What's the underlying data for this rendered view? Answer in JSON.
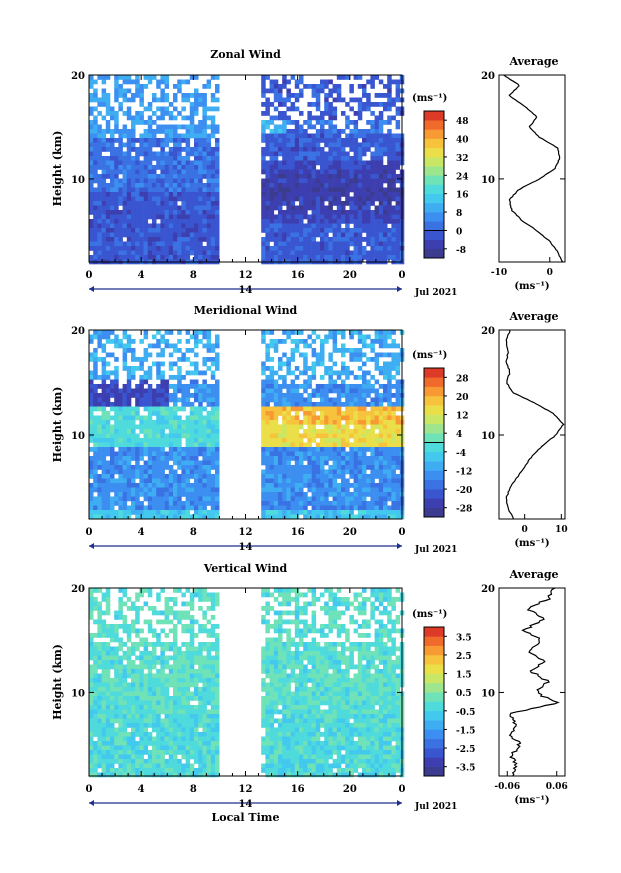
{
  "figure": {
    "month_label": "Jul 2021",
    "xlabel": "Local Time",
    "ylabel": "Height (km)",
    "date_label": "14",
    "average_title": "Average",
    "unit_label": "(ms⁻¹)"
  },
  "chart_data": [
    {
      "type": "heatmap",
      "title": "Zonal Wind",
      "xlabel": "",
      "ylabel": "Height (km)",
      "x_ticks": [
        "0",
        "4",
        "8",
        "12",
        "16",
        "20",
        "0"
      ],
      "y_ticks": [
        "10",
        "20"
      ],
      "xlim": [
        0,
        24
      ],
      "ylim": [
        2,
        20
      ],
      "data_gap_hours": [
        9.7,
        13.2
      ],
      "colorbar_ticks": [
        "48",
        "40",
        "32",
        "24",
        "16",
        "8",
        "0",
        "-8"
      ],
      "colorbar_range": [
        -12,
        52
      ],
      "profile": {
        "title": "Average",
        "xlabel": "(ms⁻¹)",
        "x_ticks": [
          "-10",
          "0"
        ],
        "xlim": [
          -10,
          3
        ],
        "y_ticks": [
          "10",
          "20"
        ],
        "heights": [
          2,
          3,
          4,
          5,
          6,
          7,
          8,
          9,
          10,
          11,
          12,
          13,
          14,
          15,
          16,
          17,
          18,
          19,
          20
        ],
        "values": [
          2.5,
          1.5,
          0.0,
          -2.5,
          -5.5,
          -7.5,
          -8.0,
          -6.0,
          -2.0,
          1.0,
          2.0,
          1.5,
          -2.0,
          -4.0,
          -2.5,
          -5.0,
          -8.0,
          -6.0,
          -9.0
        ]
      }
    },
    {
      "type": "heatmap",
      "title": "Meridional Wind",
      "xlabel": "",
      "ylabel": "Height (km)",
      "x_ticks": [
        "0",
        "4",
        "8",
        "12",
        "16",
        "20",
        "0"
      ],
      "y_ticks": [
        "10",
        "20"
      ],
      "xlim": [
        0,
        24
      ],
      "ylim": [
        2,
        20
      ],
      "data_gap_hours": [
        9.7,
        13.2
      ],
      "colorbar_ticks": [
        "28",
        "20",
        "12",
        "4",
        "-4",
        "-12",
        "-20",
        "-28"
      ],
      "colorbar_range": [
        -32,
        32
      ],
      "profile": {
        "title": "Average",
        "xlabel": "(ms⁻¹)",
        "x_ticks": [
          "0",
          "10"
        ],
        "xlim": [
          -7,
          11
        ],
        "y_ticks": [
          "10",
          "20"
        ],
        "heights": [
          2,
          3,
          4,
          5,
          6,
          7,
          8,
          9,
          10,
          11,
          12,
          13,
          14,
          15,
          16,
          17,
          18,
          19,
          20
        ],
        "values": [
          -3.0,
          -4.5,
          -5.0,
          -4.0,
          -2.0,
          0.0,
          2.0,
          5.0,
          8.5,
          10.5,
          8.0,
          3.0,
          -3.0,
          -5.0,
          -4.0,
          -5.0,
          -4.5,
          -5.0,
          -4.0
        ]
      }
    },
    {
      "type": "heatmap",
      "title": "Vertical Wind",
      "xlabel": "Local Time",
      "ylabel": "Height (km)",
      "x_ticks": [
        "0",
        "4",
        "8",
        "12",
        "16",
        "20",
        "0"
      ],
      "y_ticks": [
        "10",
        "20"
      ],
      "xlim": [
        0,
        24
      ],
      "ylim": [
        2,
        20
      ],
      "data_gap_hours": [
        9.7,
        13.2
      ],
      "colorbar_ticks": [
        "3.5",
        "2.5",
        "1.5",
        "0.5",
        "-0.5",
        "-1.5",
        "-2.5",
        "-3.5"
      ],
      "colorbar_range": [
        -4,
        4
      ],
      "profile": {
        "title": "Average",
        "xlabel": "(ms⁻¹)",
        "x_ticks": [
          "-0.06",
          "0.06"
        ],
        "xlim": [
          -0.08,
          0.08
        ],
        "y_ticks": [
          "10",
          "20"
        ],
        "heights": [
          2,
          3,
          4,
          5,
          6,
          7,
          8,
          9,
          10,
          11,
          12,
          13,
          14,
          15,
          16,
          17,
          18,
          19,
          20
        ],
        "values": [
          -0.05,
          -0.04,
          -0.05,
          -0.03,
          -0.05,
          -0.04,
          -0.05,
          0.06,
          0.01,
          0.04,
          0.0,
          0.03,
          -0.01,
          0.02,
          -0.02,
          0.03,
          -0.01,
          0.04,
          0.05
        ]
      }
    }
  ]
}
